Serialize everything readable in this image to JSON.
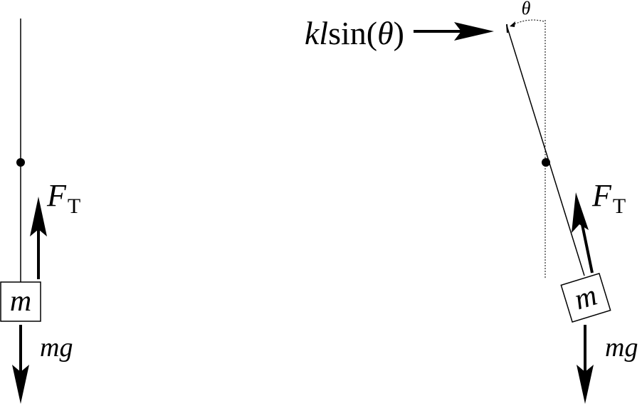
{
  "left_diagram": {
    "mass_label": "m",
    "tension_label": "F",
    "tension_subscript": "T",
    "weight_label": "mg"
  },
  "right_diagram": {
    "mass_label": "m",
    "tension_label": "F",
    "tension_subscript": "T",
    "weight_label": "mg",
    "angle_label": "θ",
    "force_label_k": "k",
    "force_label_l": "l",
    "force_label_rest": "sin(",
    "force_label_theta": "θ",
    "force_label_close": ")"
  },
  "colors": {
    "ink": "#000000",
    "background": "#ffffff"
  }
}
